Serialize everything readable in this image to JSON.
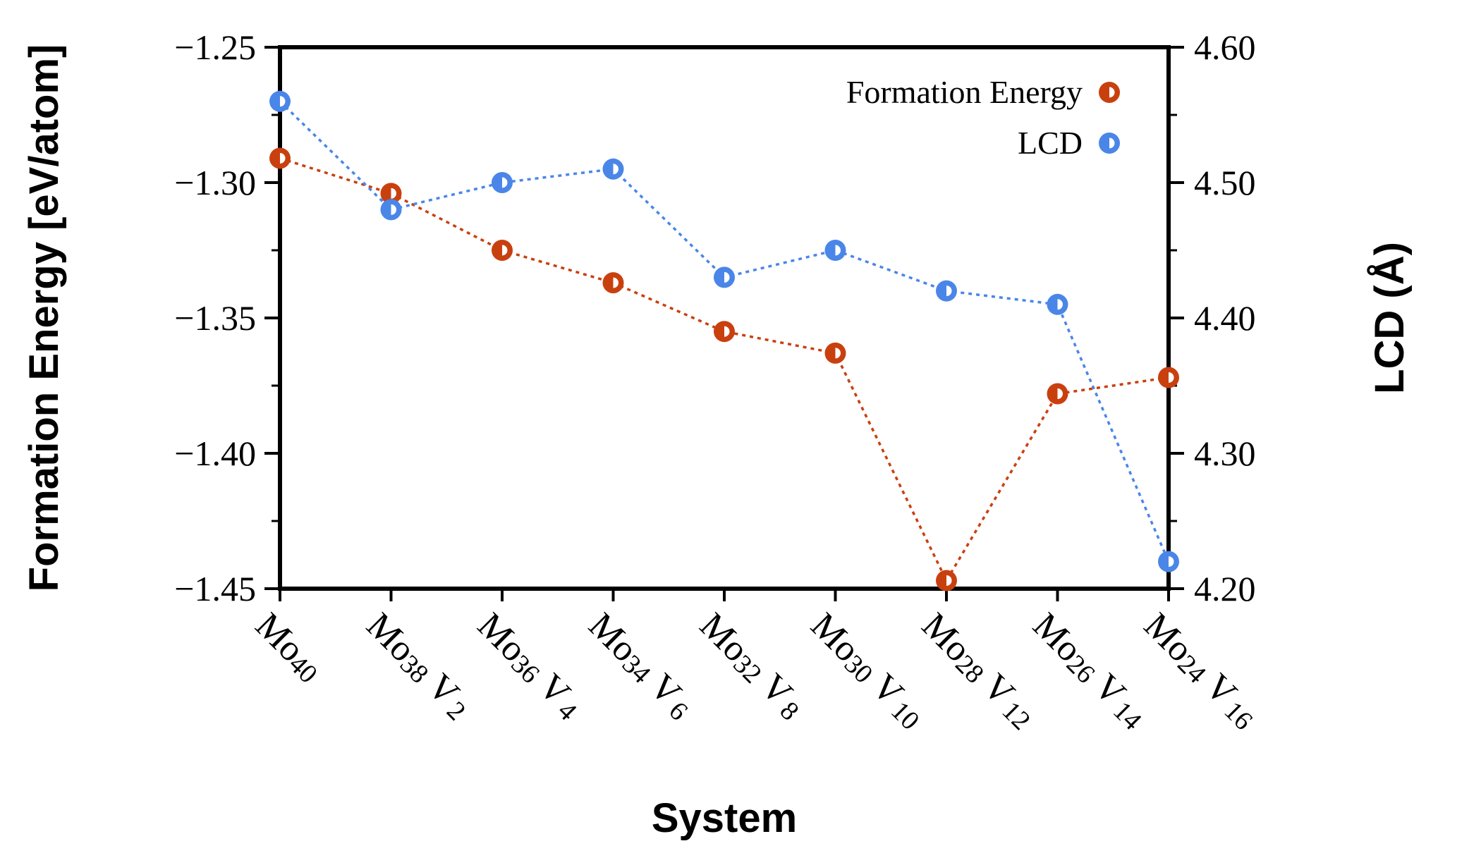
{
  "chart_data": {
    "type": "line",
    "xlabel": "System",
    "ylabel": "Formation Energy [eV/atom]",
    "y2label": "LCD (Å)",
    "categories": [
      {
        "base": "Mo",
        "sub1": "40",
        "el2": "",
        "sub2": ""
      },
      {
        "base": "Mo",
        "sub1": "38",
        "el2": "V",
        "sub2": "2"
      },
      {
        "base": "Mo",
        "sub1": "36",
        "el2": "V",
        "sub2": "4"
      },
      {
        "base": "Mo",
        "sub1": "34",
        "el2": "V",
        "sub2": "6"
      },
      {
        "base": "Mo",
        "sub1": "32",
        "el2": "V",
        "sub2": "8"
      },
      {
        "base": "Mo",
        "sub1": "30",
        "el2": "V",
        "sub2": "10"
      },
      {
        "base": "Mo",
        "sub1": "28",
        "el2": "V",
        "sub2": "12"
      },
      {
        "base": "Mo",
        "sub1": "26",
        "el2": "V",
        "sub2": "14"
      },
      {
        "base": "Mo",
        "sub1": "24",
        "el2": "V",
        "sub2": "16"
      }
    ],
    "ylim": [
      -1.45,
      -1.25
    ],
    "y2lim": [
      4.2,
      4.6
    ],
    "yticks": [
      "−1.25",
      "−1.30",
      "−1.35",
      "−1.40",
      "−1.45"
    ],
    "yticks_values": [
      -1.25,
      -1.3,
      -1.35,
      -1.4,
      -1.45
    ],
    "y2ticks": [
      "4.60",
      "4.50",
      "4.40",
      "4.30",
      "4.20"
    ],
    "y2ticks_values": [
      4.6,
      4.5,
      4.4,
      4.3,
      4.2
    ],
    "series": [
      {
        "name": "Formation Energy",
        "axis": "left",
        "color": "#c9400f",
        "values": [
          -1.291,
          -1.304,
          -1.325,
          -1.337,
          -1.355,
          -1.363,
          -1.447,
          -1.378,
          -1.372
        ]
      },
      {
        "name": "LCD",
        "axis": "right",
        "color": "#4a86e8",
        "values": [
          4.56,
          4.48,
          4.5,
          4.51,
          4.43,
          4.45,
          4.42,
          4.41,
          4.22
        ]
      }
    ],
    "legend": "top-right"
  }
}
